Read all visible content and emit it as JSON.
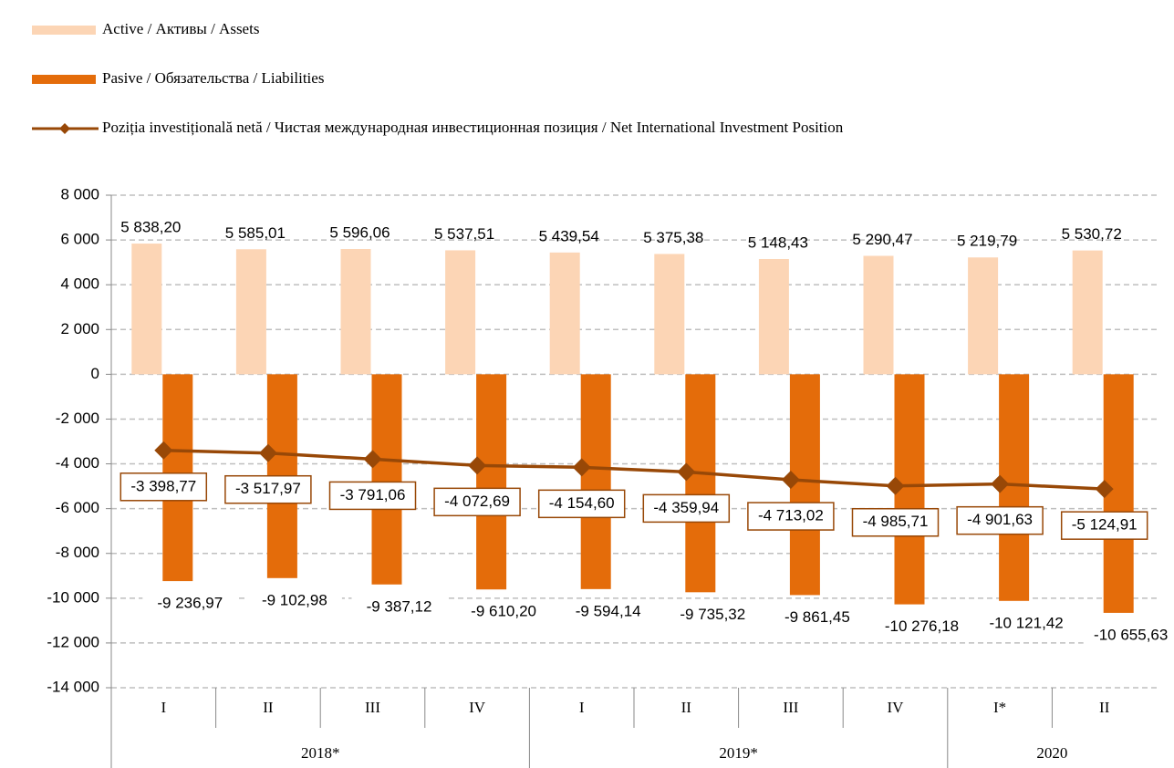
{
  "chart_data": {
    "type": "bar_line",
    "categories": [
      "I",
      "II",
      "III",
      "IV",
      "I",
      "II",
      "III",
      "IV",
      "I*",
      "II"
    ],
    "category_years": [
      "2018*",
      "2018*",
      "2018*",
      "2018*",
      "2019*",
      "2019*",
      "2019*",
      "2019*",
      "2020",
      "2020"
    ],
    "series": [
      {
        "name": "Active / Активы / Assets",
        "type": "bar",
        "color": "#fcd5b5",
        "values": [
          5838.2,
          5585.01,
          5596.06,
          5537.51,
          5439.54,
          5375.38,
          5148.43,
          5290.47,
          5219.79,
          5530.72
        ],
        "value_labels": [
          "5 838,20",
          "5 585,01",
          "5 596,06",
          "5 537,51",
          "5 439,54",
          "5 375,38",
          "5 148,43",
          "5 290,47",
          "5 219,79",
          "5 530,72"
        ]
      },
      {
        "name": "Pasive / Обязательства / Liabilities",
        "type": "bar",
        "color": "#e46c0a",
        "values": [
          -9236.97,
          -9102.98,
          -9387.12,
          -9610.2,
          -9594.14,
          -9735.32,
          -9861.45,
          -10276.18,
          -10121.42,
          -10655.63
        ],
        "value_labels": [
          "-9 236,97",
          "-9 102,98",
          "-9 387,12",
          "-9 610,20",
          "-9 594,14",
          "-9 735,32",
          "-9 861,45",
          "-10 276,18",
          "-10 121,42",
          "-10 655,63"
        ]
      },
      {
        "name": "Poziția investițională netă / Чистая международная инвестиционная позиция / Net International Investment Position",
        "type": "line",
        "color": "#984807",
        "values": [
          -3398.77,
          -3517.97,
          -3791.06,
          -4072.69,
          -4154.6,
          -4359.94,
          -4713.02,
          -4985.71,
          -4901.63,
          -5124.91
        ],
        "value_labels": [
          "-3 398,77",
          "-3 517,97",
          "-3 791,06",
          "-4 072,69",
          "-4 154,60",
          "-4 359,94",
          "-4 713,02",
          "-4 985,71",
          "-4 901,63",
          "-5 124,91"
        ]
      }
    ],
    "ylim": [
      -14000,
      8000
    ],
    "yticks": [
      {
        "value": -14000,
        "label": "-14 000"
      },
      {
        "value": -12000,
        "label": "-12 000"
      },
      {
        "value": -10000,
        "label": "-10 000"
      },
      {
        "value": -8000,
        "label": "-8 000"
      },
      {
        "value": -6000,
        "label": "-6 000"
      },
      {
        "value": -4000,
        "label": "-4 000"
      },
      {
        "value": -2000,
        "label": "-2 000"
      },
      0,
      {
        "value": 2000,
        "label": "2 000"
      },
      {
        "value": 4000,
        "label": "4 000"
      },
      {
        "value": 6000,
        "label": "6 000"
      },
      {
        "value": 8000,
        "label": "8 000"
      }
    ],
    "grid": true,
    "legend": "top-left"
  }
}
